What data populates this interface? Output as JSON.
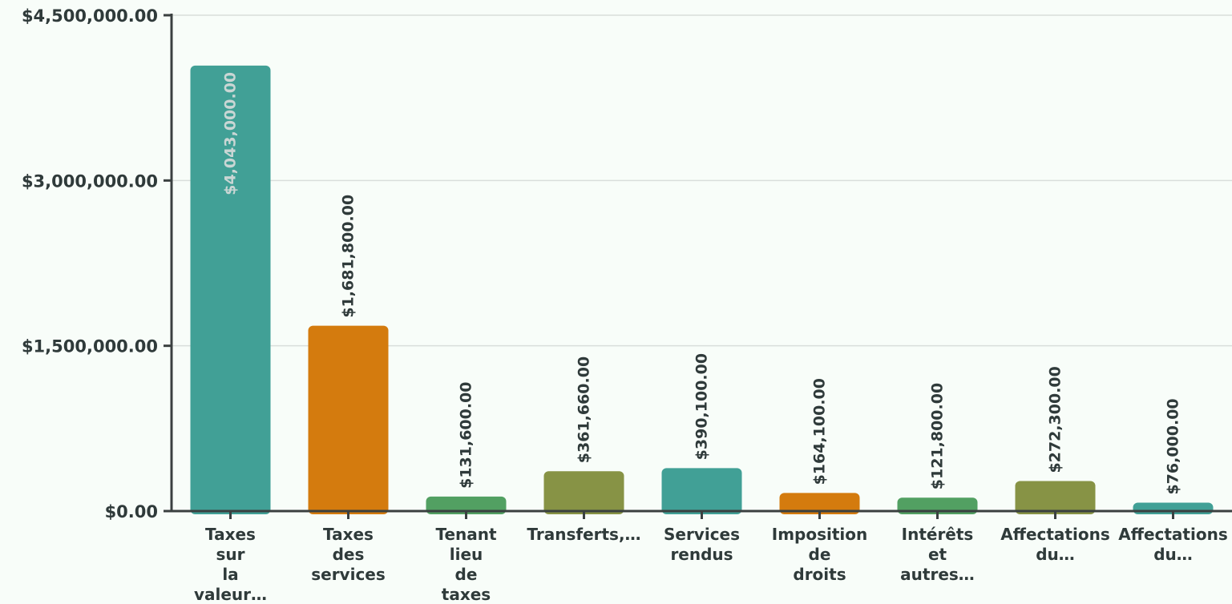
{
  "chart_data": {
    "type": "bar",
    "title": "",
    "xlabel": "",
    "ylabel": "",
    "ylim": [
      0,
      4500000
    ],
    "yticks": [
      0,
      1500000,
      3000000,
      4500000
    ],
    "ytick_labels": [
      "$0.00",
      "$1,500,000.00",
      "$3,000,000.00",
      "$4,500,000.00"
    ],
    "grid": true,
    "legend": "none",
    "categories": [
      [
        "Taxes",
        "sur",
        "la",
        "valeur…"
      ],
      [
        "Taxes",
        "des",
        "services"
      ],
      [
        "Tenant",
        "lieu",
        "de",
        "taxes"
      ],
      [
        "Transferts,…"
      ],
      [
        "Services",
        "rendus"
      ],
      [
        "Imposition",
        "de",
        "droits"
      ],
      [
        "Intérêts",
        "et",
        "autres…"
      ],
      [
        "Affectations",
        "du…"
      ],
      [
        "Affectations",
        "du…"
      ]
    ],
    "values": [
      4043000,
      1681800,
      131600,
      361660,
      390100,
      164100,
      121800,
      272300,
      76000
    ],
    "value_labels": [
      "$4,043,000.00",
      "$1,681,800.00",
      "$131,600.00",
      "$361,660.00",
      "$390,100.00",
      "$164,100.00",
      "$121,800.00",
      "$272,300.00",
      "$76,000.00"
    ],
    "colors": [
      "#41a096",
      "#d47b0e",
      "#52a062",
      "#879345",
      "#41a096",
      "#d47b0e",
      "#52a062",
      "#879345",
      "#41a096"
    ],
    "axis_color": "#3a4040",
    "grid_color": "#d9dedb",
    "label_color": "#2f3a3a",
    "inside_label_color": "#c9d6d4"
  }
}
